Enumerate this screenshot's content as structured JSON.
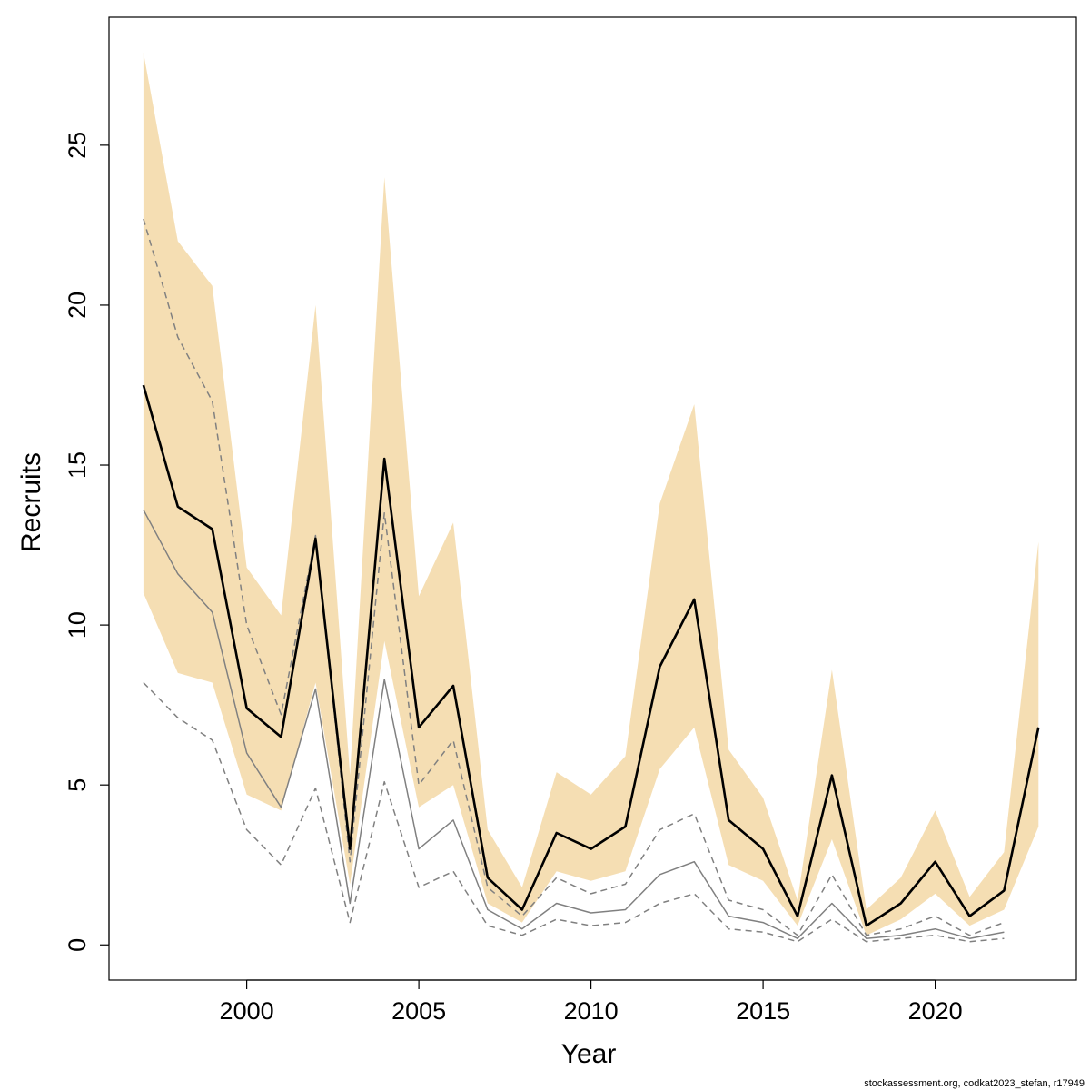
{
  "chart_data": {
    "type": "line",
    "xlabel": "Year",
    "ylabel": "Recruits",
    "xlim": [
      1996,
      2024.1
    ],
    "ylim": [
      -1.1,
      29
    ],
    "x_ticks": [
      2000,
      2005,
      2010,
      2015,
      2020
    ],
    "y_ticks": [
      0,
      5,
      10,
      15,
      20,
      25
    ],
    "grid": false,
    "colors": {
      "band": "#f5deb3",
      "estimate": "#000000",
      "previous": "#808080"
    },
    "band": {
      "name": "",
      "x": [
        1997,
        1998,
        1999,
        2000,
        2001,
        2002,
        2003,
        2004,
        2005,
        2006,
        2007,
        2008,
        2009,
        2010,
        2011,
        2012,
        2013,
        2014,
        2015,
        2016,
        2017,
        2018,
        2019,
        2020,
        2021,
        2022,
        2023
      ],
      "upper": [
        27.9,
        22.0,
        20.6,
        11.8,
        10.3,
        20.0,
        5.3,
        24.0,
        10.9,
        13.2,
        3.6,
        1.8,
        5.4,
        4.7,
        5.9,
        13.8,
        16.9,
        6.1,
        4.6,
        1.4,
        8.6,
        1.1,
        2.1,
        4.2,
        1.5,
        2.9,
        12.6
      ],
      "lower": [
        11.0,
        8.5,
        8.2,
        4.7,
        4.2,
        8.2,
        1.9,
        9.5,
        4.3,
        5.0,
        1.3,
        0.7,
        2.3,
        2.0,
        2.3,
        5.5,
        6.8,
        2.5,
        2.0,
        0.6,
        3.3,
        0.3,
        0.8,
        1.6,
        0.6,
        1.1,
        3.7
      ]
    },
    "series": [
      {
        "name": "",
        "style": "solid-thick",
        "x": [
          1997,
          1998,
          1999,
          2000,
          2001,
          2002,
          2003,
          2004,
          2005,
          2006,
          2007,
          2008,
          2009,
          2010,
          2011,
          2012,
          2013,
          2014,
          2015,
          2016,
          2017,
          2018,
          2019,
          2020,
          2021,
          2022,
          2023
        ],
        "y": [
          17.5,
          13.7,
          13.0,
          7.4,
          6.5,
          12.7,
          3.0,
          15.2,
          6.8,
          8.1,
          2.1,
          1.1,
          3.5,
          3.0,
          3.7,
          8.7,
          10.8,
          3.9,
          3.0,
          0.9,
          5.3,
          0.6,
          1.3,
          2.6,
          0.9,
          1.7,
          6.8
        ]
      },
      {
        "name": "",
        "style": "solid-thin",
        "x": [
          1997,
          1998,
          1999,
          2000,
          2001,
          2002,
          2003,
          2004,
          2005,
          2006,
          2007,
          2008,
          2009,
          2010,
          2011,
          2012,
          2013,
          2014,
          2015,
          2016,
          2017,
          2018,
          2019,
          2020,
          2021,
          2022
        ],
        "y": [
          13.6,
          11.6,
          10.4,
          6.0,
          4.3,
          8.0,
          1.3,
          8.3,
          3.0,
          3.9,
          1.1,
          0.5,
          1.3,
          1.0,
          1.1,
          2.2,
          2.6,
          0.9,
          0.7,
          0.2,
          1.3,
          0.2,
          0.3,
          0.5,
          0.2,
          0.4
        ]
      },
      {
        "name": "",
        "style": "dashed",
        "x": [
          1997,
          1998,
          1999,
          2000,
          2001,
          2002,
          2003,
          2004,
          2005,
          2006,
          2007,
          2008,
          2009,
          2010,
          2011,
          2012,
          2013,
          2014,
          2015,
          2016,
          2017,
          2018,
          2019,
          2020,
          2021,
          2022
        ],
        "y": [
          22.7,
          19.0,
          17.0,
          10.0,
          7.2,
          12.8,
          2.6,
          13.5,
          5.0,
          6.4,
          1.8,
          0.9,
          2.1,
          1.6,
          1.9,
          3.6,
          4.1,
          1.4,
          1.1,
          0.3,
          2.2,
          0.3,
          0.5,
          0.9,
          0.3,
          0.7
        ]
      },
      {
        "name": "",
        "style": "dashed",
        "x": [
          1997,
          1998,
          1999,
          2000,
          2001,
          2002,
          2003,
          2004,
          2005,
          2006,
          2007,
          2008,
          2009,
          2010,
          2011,
          2012,
          2013,
          2014,
          2015,
          2016,
          2017,
          2018,
          2019,
          2020,
          2021,
          2022
        ],
        "y": [
          8.2,
          7.1,
          6.4,
          3.6,
          2.5,
          4.9,
          0.7,
          5.1,
          1.8,
          2.3,
          0.6,
          0.3,
          0.8,
          0.6,
          0.7,
          1.3,
          1.6,
          0.5,
          0.4,
          0.1,
          0.8,
          0.1,
          0.2,
          0.3,
          0.1,
          0.2
        ]
      }
    ],
    "footer": "stockassessment.org, codkat2023_stefan, r17949"
  }
}
